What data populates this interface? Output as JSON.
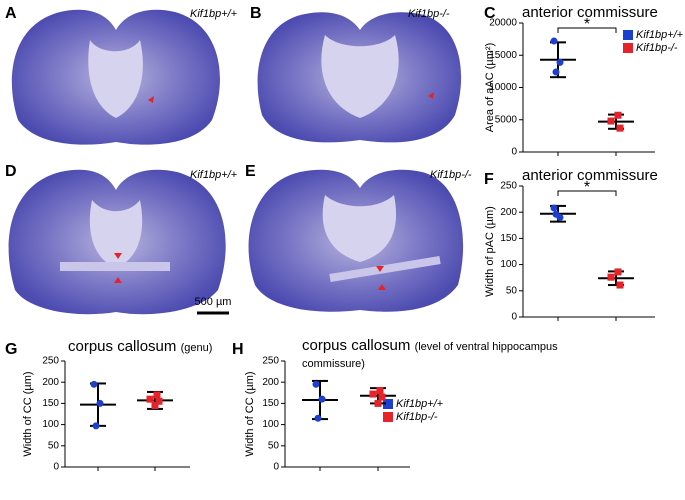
{
  "figure": {
    "image_panels": [
      {
        "letter": "A",
        "genotype": "Kif1bp+/+"
      },
      {
        "letter": "B",
        "genotype": "Kif1bp-/-"
      },
      {
        "letter": "D",
        "genotype": "Kif1bp+/+"
      },
      {
        "letter": "E",
        "genotype": "Kif1bp-/-"
      }
    ],
    "scale_bar": "500 µm"
  },
  "chart_data": [
    {
      "type": "dotplot",
      "panel_label": "C",
      "title": "anterior commissure",
      "y_label": "Area of aAC (µm²)",
      "ylim": [
        0,
        20000
      ],
      "yticks": [
        0,
        5000,
        10000,
        15000,
        20000
      ],
      "annotation": "*",
      "legend": true,
      "series": [
        {
          "name": "Kif1bp+/+",
          "color": "#1d3fcf",
          "values": [
            17200,
            13900,
            12400
          ],
          "mean": 14300,
          "sd": 2700
        },
        {
          "name": "Kif1bp-/-",
          "color": "#e4232b",
          "values": [
            5700,
            4800,
            3700
          ],
          "mean": 4700,
          "sd": 1100
        }
      ]
    },
    {
      "type": "dotplot",
      "panel_label": "F",
      "title": "anterior commissure",
      "y_label": "Width of pAC (µm)",
      "ylim": [
        0,
        250
      ],
      "yticks": [
        0,
        50,
        100,
        150,
        200,
        250
      ],
      "annotation": "*",
      "legend": false,
      "series": [
        {
          "name": "Kif1bp+/+",
          "color": "#1d3fcf",
          "values": [
            208,
            190,
            196
          ],
          "mean": 197,
          "sd": 15
        },
        {
          "name": "Kif1bp-/-",
          "color": "#e4232b",
          "values": [
            86,
            76,
            61
          ],
          "mean": 74,
          "sd": 13
        }
      ]
    },
    {
      "type": "dotplot",
      "panel_label": "G",
      "title": "corpus callosum",
      "subtitle": "(genu)",
      "y_label": "Width of CC (µm)",
      "ylim": [
        0,
        250
      ],
      "yticks": [
        0,
        50,
        100,
        150,
        200,
        250
      ],
      "legend": false,
      "series": [
        {
          "name": "Kif1bp+/+",
          "color": "#1d3fcf",
          "values": [
            195,
            150,
            97
          ],
          "mean": 147,
          "sd": 50
        },
        {
          "name": "Kif1bp-/-",
          "color": "#e4232b",
          "values": [
            170,
            160,
            155,
            145
          ],
          "mean": 157,
          "sd": 20
        }
      ]
    },
    {
      "type": "dotplot",
      "panel_label": "H",
      "title": "corpus callosum",
      "subtitle": "(level of ventral hippocampus commissure)",
      "y_label": "Width of CC (µm)",
      "ylim": [
        0,
        250
      ],
      "yticks": [
        0,
        50,
        100,
        150,
        200,
        250
      ],
      "legend": true,
      "series": [
        {
          "name": "Kif1bp+/+",
          "color": "#1d3fcf",
          "values": [
            195,
            160,
            115
          ],
          "mean": 158,
          "sd": 45
        },
        {
          "name": "Kif1bp-/-",
          "color": "#e4232b",
          "values": [
            180,
            172,
            165,
            150
          ],
          "mean": 168,
          "sd": 18
        }
      ]
    }
  ]
}
